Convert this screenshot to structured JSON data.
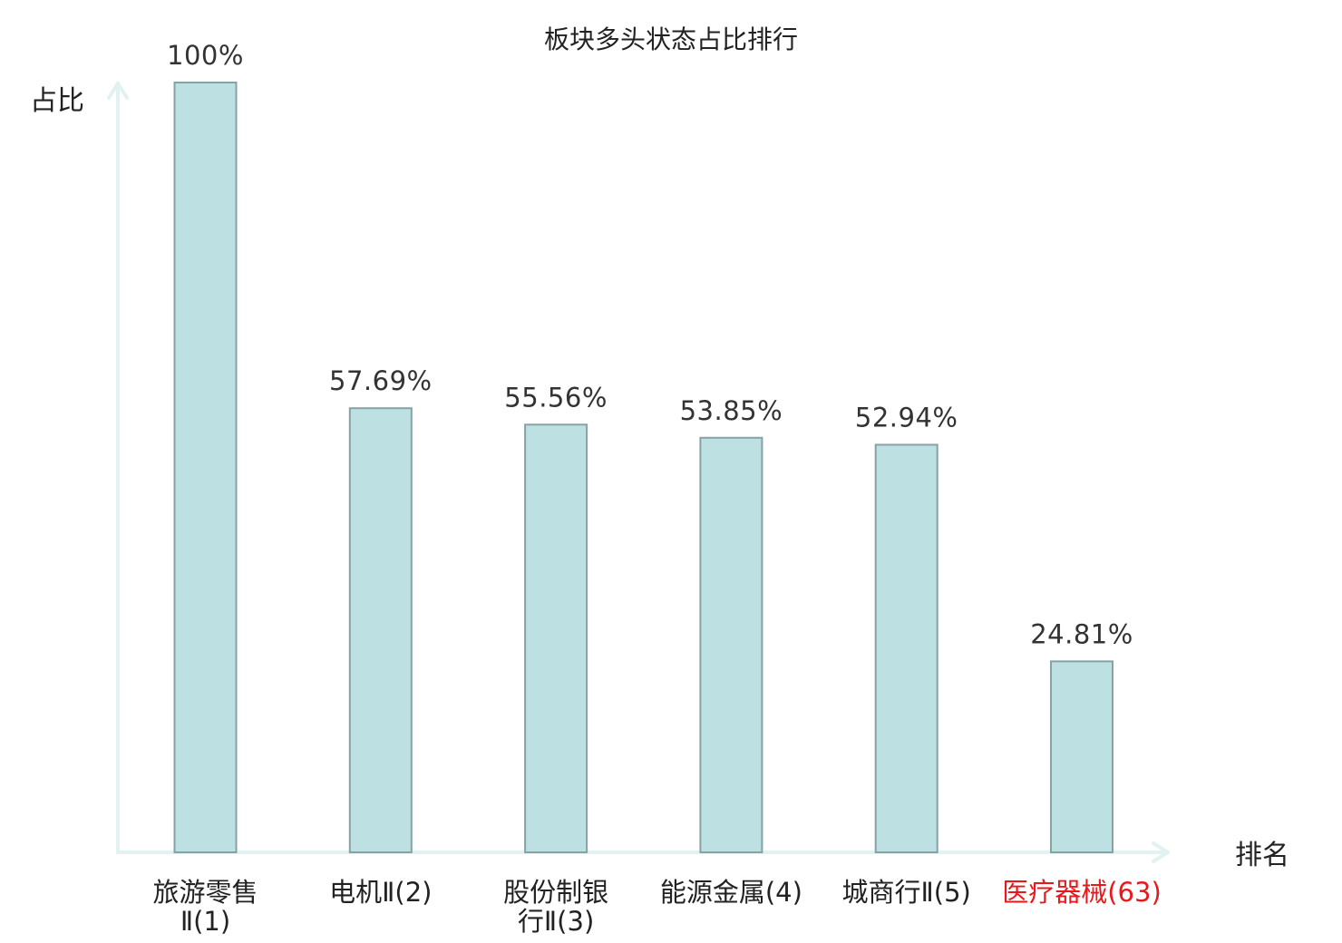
{
  "chart_data": {
    "type": "bar",
    "title": "板块多头状态占比排行",
    "ylabel": "占比",
    "xlabel": "排名",
    "categories": [
      {
        "lines": [
          "旅游零售",
          "Ⅱ(1)"
        ],
        "highlight": false
      },
      {
        "lines": [
          "电机Ⅱ(2)"
        ],
        "highlight": false
      },
      {
        "lines": [
          "股份制银",
          "行Ⅱ(3)"
        ],
        "highlight": false
      },
      {
        "lines": [
          "能源金属(4)"
        ],
        "highlight": false
      },
      {
        "lines": [
          "城商行Ⅱ(5)"
        ],
        "highlight": false
      },
      {
        "lines": [
          "医疗器械(63)"
        ],
        "highlight": true
      }
    ],
    "values": [
      100,
      57.69,
      55.56,
      53.85,
      52.94,
      24.81
    ],
    "value_labels": [
      "100%",
      "57.69%",
      "55.56%",
      "53.85%",
      "52.94%",
      "24.81%"
    ],
    "ylim": [
      0,
      100
    ],
    "grid": false,
    "colors": {
      "bar_fill": "#bde0e3",
      "bar_stroke": "#86a2a5",
      "axis": "#e2f2f0",
      "highlight_text": "#e8191c"
    }
  }
}
